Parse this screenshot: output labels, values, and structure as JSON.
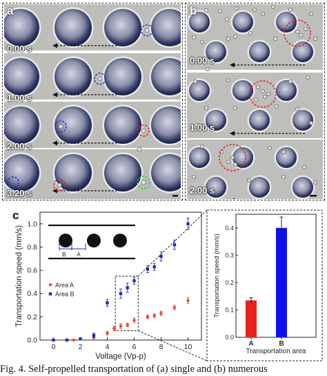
{
  "panel_a": {
    "letter": "a",
    "timestamps": [
      "0.00 s",
      "1.00 s",
      "2.00 s",
      "3.20 s"
    ]
  },
  "panel_b": {
    "letter": "b",
    "timestamps": [
      "0.00 s",
      "1.00 s",
      "2.00 s"
    ]
  },
  "panel_c": {
    "letter": "c",
    "schematic_labels": [
      "B",
      "A"
    ]
  },
  "caption": {
    "text": "Fig. 4. Self-propelled transportation of (a) single and (b) numerous"
  },
  "colors": {
    "area_a": "#e34a33",
    "area_b": "#1f2fbf",
    "bar_a": "#e8221b",
    "bar_b": "#1010ee",
    "circle_blue": "#2233cc",
    "circle_red": "#dd2222",
    "circle_green": "#33cc33"
  },
  "chart_data": [
    {
      "type": "scatter",
      "xlabel": "Voltage (Vp-p)",
      "ylabel": "Transportation speed (mm/s)",
      "xlim": [
        -1,
        11
      ],
      "ylim": [
        0,
        1.1
      ],
      "xticks": [
        "0",
        "2",
        "4",
        "6",
        "8",
        "10"
      ],
      "yticks": [
        "0.0",
        "0.2",
        "0.4",
        "0.6",
        "0.8",
        "1.0"
      ],
      "legend_placement": "lower-left",
      "series": [
        {
          "name": "Area A",
          "x": [
            0,
            1,
            1.5,
            2,
            3,
            4,
            4.5,
            5,
            5.5,
            6,
            7,
            7.5,
            8,
            9,
            10
          ],
          "y": [
            0.0,
            0.0,
            0.0,
            0.01,
            0.02,
            0.06,
            0.1,
            0.12,
            0.13,
            0.17,
            0.2,
            0.21,
            0.23,
            0.28,
            0.34
          ],
          "err": [
            0.005,
            0.005,
            0.005,
            0.005,
            0.005,
            0.015,
            0.02,
            0.02,
            0.015,
            0.02,
            0.015,
            0.015,
            0.02,
            0.02,
            0.025
          ]
        },
        {
          "name": "Area B",
          "x": [
            0,
            1,
            2,
            3,
            4,
            5,
            5.5,
            6,
            7,
            7.5,
            8,
            9,
            10
          ],
          "y": [
            0.0,
            0.0,
            0.01,
            0.04,
            0.32,
            0.4,
            0.45,
            0.51,
            0.61,
            0.63,
            0.72,
            0.82,
            1.0
          ],
          "err": [
            0.005,
            0.005,
            0.005,
            0.02,
            0.03,
            0.04,
            0.04,
            0.03,
            0.03,
            0.03,
            0.04,
            0.04,
            0.05
          ]
        }
      ]
    },
    {
      "type": "bar",
      "categories": [
        "A",
        "B"
      ],
      "values": [
        0.135,
        0.4
      ],
      "errors": [
        0.01,
        0.04
      ],
      "xlabel": "Transportation area",
      "ylabel": "Transportation speed (mm/s)",
      "ylim": [
        0,
        0.45
      ],
      "yticks": [
        "0.0",
        "0.1",
        "0.2",
        "0.3",
        "0.4"
      ]
    }
  ]
}
